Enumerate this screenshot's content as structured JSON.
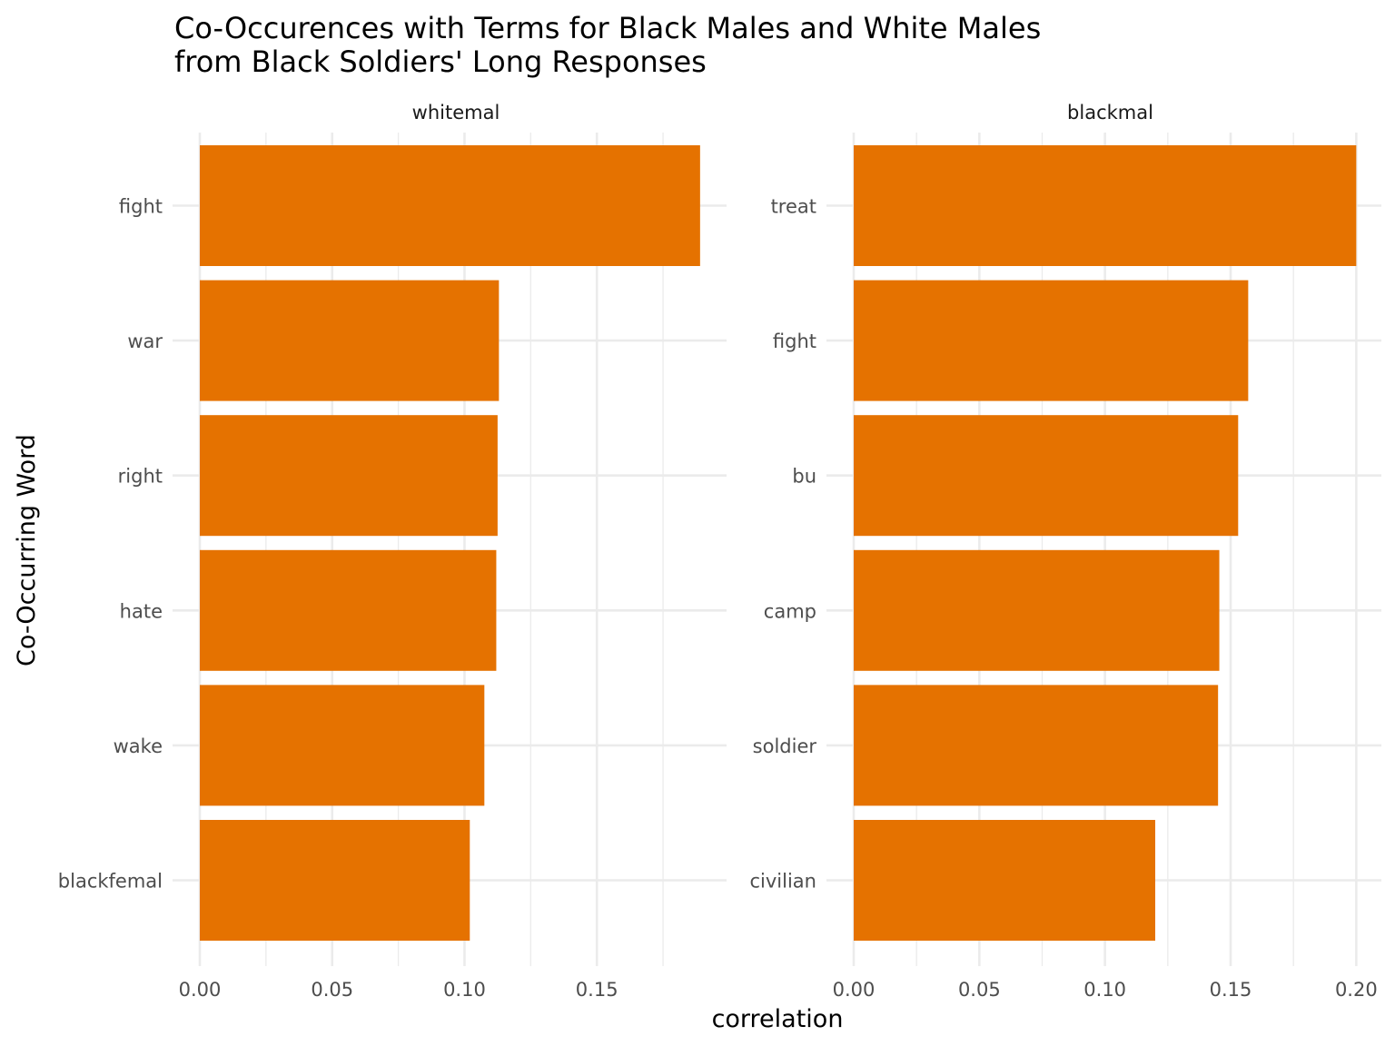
{
  "chart_data": {
    "type": "bar",
    "orientation": "horizontal",
    "title": "Co-Occurences with Terms for Black Males and White Males",
    "subtitle": "from Black Soldiers' Long Responses",
    "xlabel": "correlation",
    "ylabel": "Co-Occurring Word",
    "bar_color": "#e57200",
    "grid": true,
    "panels": [
      {
        "name": "whitemal",
        "categories": [
          "fight",
          "war",
          "right",
          "hate",
          "wake",
          "blackfemal"
        ],
        "values": [
          0.189,
          0.113,
          0.1125,
          0.112,
          0.1075,
          0.102
        ],
        "xlim": [
          0,
          0.199
        ],
        "xticks": [
          0,
          0.05,
          0.1,
          0.15
        ],
        "xtick_labels": [
          "0.00",
          "0.05",
          "0.10",
          "0.15"
        ]
      },
      {
        "name": "blackmal",
        "categories": [
          "treat",
          "fight",
          "bu",
          "camp",
          "soldier",
          "civilian"
        ],
        "values": [
          0.2,
          0.157,
          0.153,
          0.1455,
          0.145,
          0.12
        ],
        "xlim": [
          0,
          0.21
        ],
        "xticks": [
          0,
          0.05,
          0.1,
          0.15,
          0.2
        ],
        "xtick_labels": [
          "0.00",
          "0.05",
          "0.10",
          "0.15",
          "0.20"
        ]
      }
    ]
  }
}
